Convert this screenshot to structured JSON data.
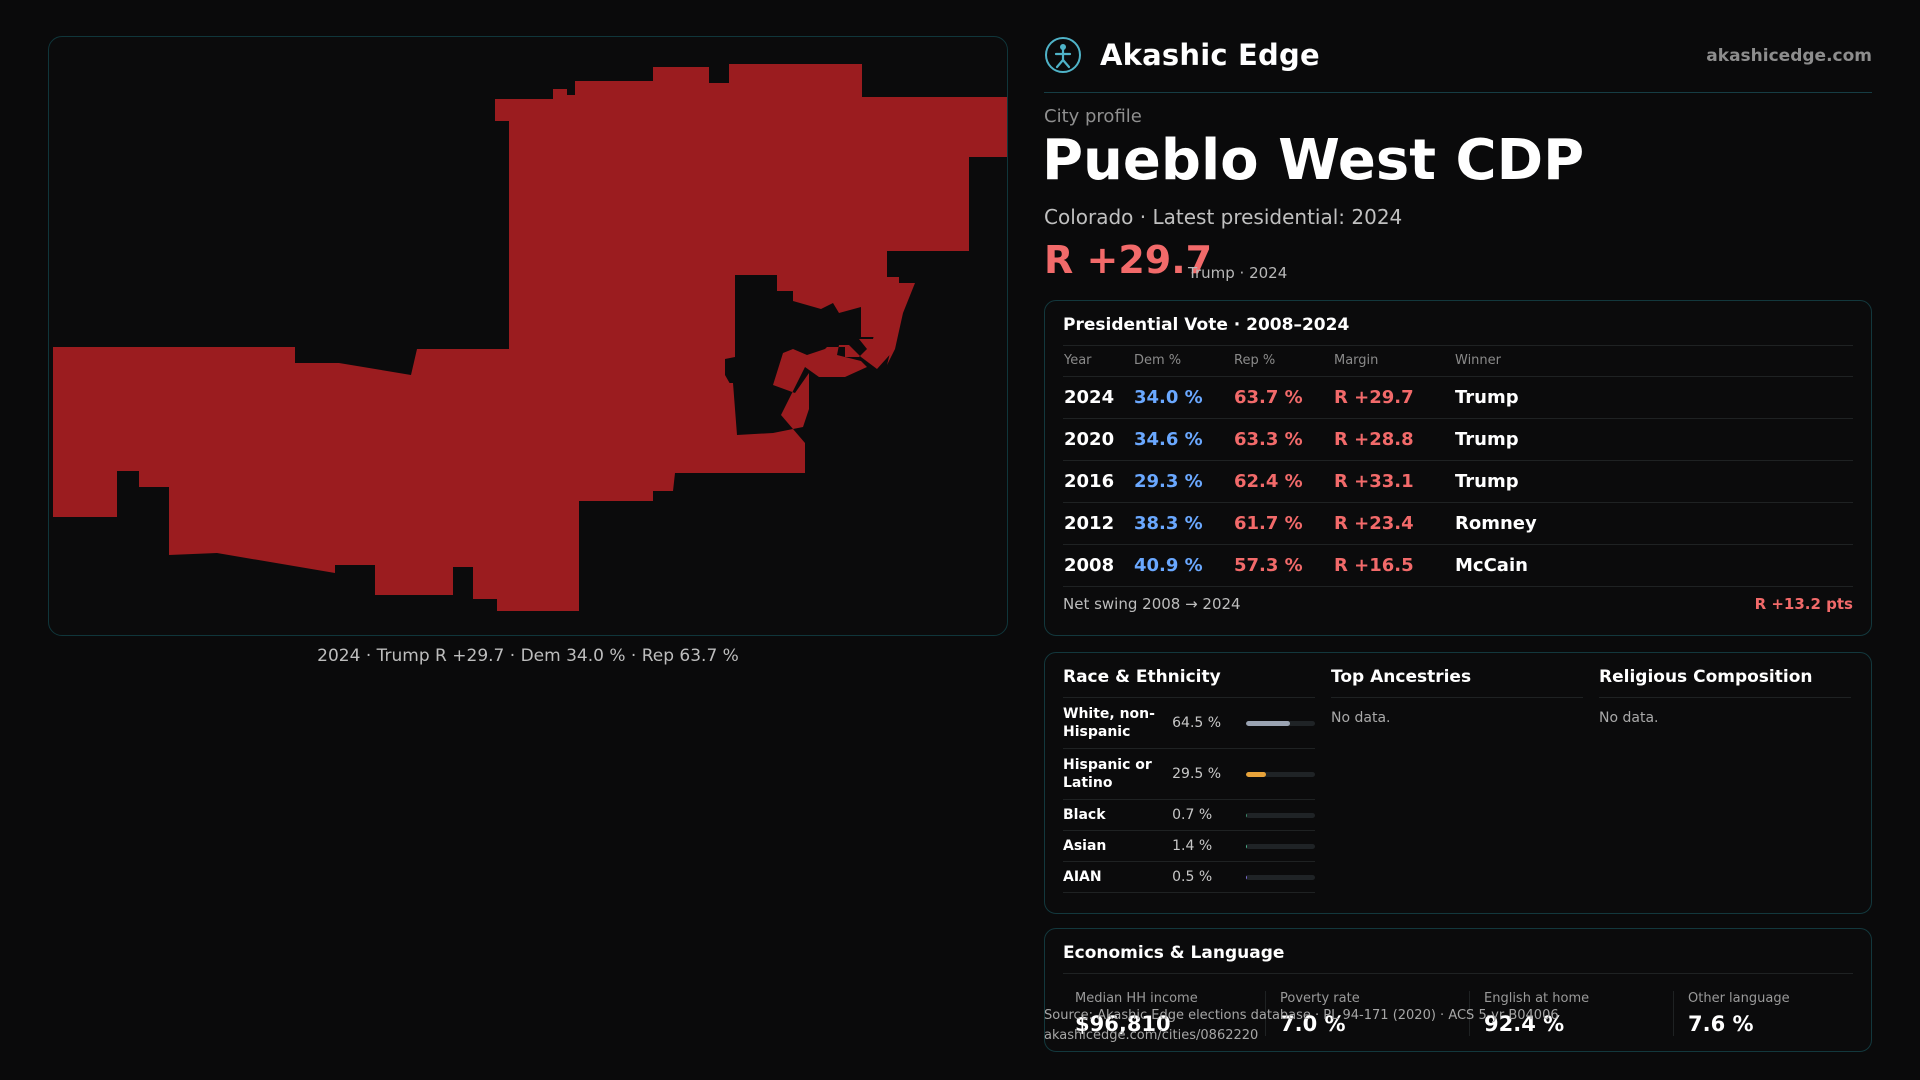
{
  "brand": {
    "name": "Akashic Edge",
    "url": "akashicedge.com"
  },
  "map": {
    "fill_color": "#9b1c1f",
    "caption": "2024 · Trump R +29.7 · Dem 34.0 % · Rep 63.7 %"
  },
  "header": {
    "eyebrow": "City profile",
    "city": "Pueblo West CDP",
    "subtitle": "Colorado · Latest presidential: 2024",
    "margin": "R +29.7",
    "margin_sub": "Trump · 2024"
  },
  "presidential": {
    "title": "Presidential Vote · 2008–2024",
    "columns": [
      "Year",
      "Dem %",
      "Rep %",
      "Margin",
      "Winner"
    ],
    "rows": [
      {
        "year": "2024",
        "dem": "34.0 %",
        "rep": "63.7 %",
        "margin": "R +29.7",
        "winner": "Trump"
      },
      {
        "year": "2020",
        "dem": "34.6 %",
        "rep": "63.3 %",
        "margin": "R +28.8",
        "winner": "Trump"
      },
      {
        "year": "2016",
        "dem": "29.3 %",
        "rep": "62.4 %",
        "margin": "R +33.1",
        "winner": "Trump"
      },
      {
        "year": "2012",
        "dem": "38.3 %",
        "rep": "61.7 %",
        "margin": "R +23.4",
        "winner": "Romney"
      },
      {
        "year": "2008",
        "dem": "40.9 %",
        "rep": "57.3 %",
        "margin": "R +16.5",
        "winner": "McCain"
      }
    ],
    "swing_label": "Net swing 2008 → 2024",
    "swing_value": "R +13.2 pts"
  },
  "demographics": {
    "race_title": "Race & Ethnicity",
    "race": [
      {
        "label": "White, non-Hispanic",
        "pct": "64.5 %",
        "share": 0.645,
        "color": "#9aa3b2"
      },
      {
        "label": "Hispanic or Latino",
        "pct": "29.5 %",
        "share": 0.295,
        "color": "#e8a33a"
      },
      {
        "label": "Black",
        "pct": "0.7 %",
        "share": 0.007,
        "color": "#3b8a6a"
      },
      {
        "label": "Asian",
        "pct": "1.4 %",
        "share": 0.014,
        "color": "#4ab08a"
      },
      {
        "label": "AIAN",
        "pct": "0.5 %",
        "share": 0.005,
        "color": "#7a6ad0"
      }
    ],
    "ancestry_title": "Top Ancestries",
    "ancestry_empty": "No data.",
    "religion_title": "Religious Composition",
    "religion_empty": "No data."
  },
  "economics": {
    "title": "Economics & Language",
    "stats": [
      {
        "label": "Median HH income",
        "value": "$96,810"
      },
      {
        "label": "Poverty rate",
        "value": "7.0 %"
      },
      {
        "label": "English at home",
        "value": "92.4 %"
      },
      {
        "label": "Other language",
        "value": "7.6 %"
      }
    ]
  },
  "footer": {
    "source": "Source: Akashic Edge elections database · PL 94-171 (2020) · ACS 5-yr B04006",
    "link": "akashicedge.com/cities/0862220"
  }
}
